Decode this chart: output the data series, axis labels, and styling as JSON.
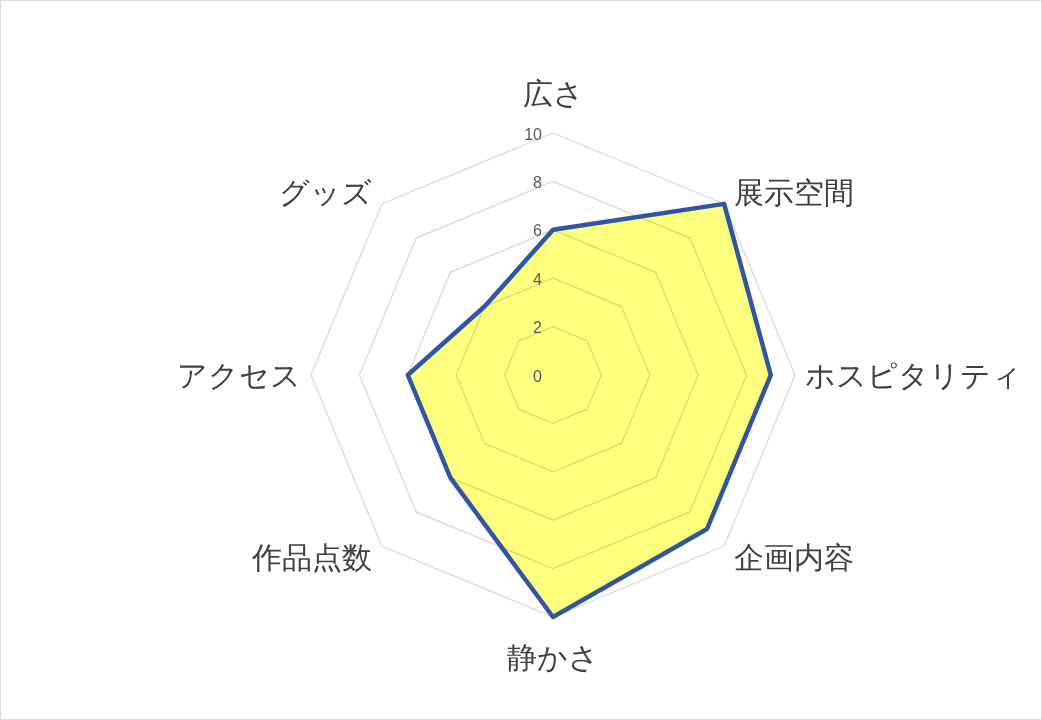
{
  "chart_data": {
    "type": "radar",
    "categories": [
      "広さ",
      "展示空間",
      "ホスピタリティ",
      "企画内容",
      "静かさ",
      "作品点数",
      "アクセス",
      "グッズ"
    ],
    "series": [
      {
        "color": "#2f55a5",
        "values": [
          6,
          10,
          9,
          9,
          10,
          6,
          6,
          4
        ]
      }
    ],
    "ylim": [
      0,
      10
    ],
    "yticks": [
      0,
      2,
      4,
      6,
      8,
      10
    ],
    "grid": true
  }
}
